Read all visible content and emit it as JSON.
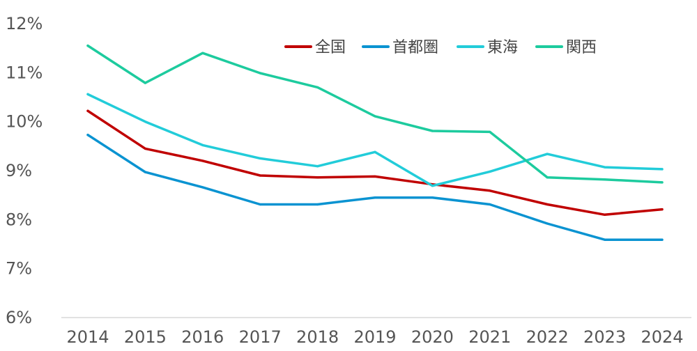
{
  "chart_data": {
    "type": "line",
    "title": "",
    "xlabel": "",
    "ylabel": "",
    "categories": [
      "2014",
      "2015",
      "2016",
      "2017",
      "2018",
      "2019",
      "2020",
      "2021",
      "2022",
      "2023",
      "2024"
    ],
    "ylim": [
      6,
      12
    ],
    "yticks": [
      6,
      7,
      8,
      9,
      10,
      11,
      12
    ],
    "ytick_labels": [
      "6%",
      "7%",
      "8%",
      "9%",
      "10%",
      "11%",
      "12%"
    ],
    "grid": false,
    "legend_position": "top-right",
    "series": [
      {
        "name": "全国",
        "color": "#C00000",
        "values": [
          10.22,
          9.45,
          9.2,
          8.9,
          8.86,
          8.88,
          8.72,
          8.59,
          8.31,
          8.1,
          8.21
        ]
      },
      {
        "name": "首都圏",
        "color": "#0A93D1",
        "values": [
          9.73,
          8.97,
          8.66,
          8.31,
          8.31,
          8.45,
          8.45,
          8.31,
          7.92,
          7.59,
          7.59
        ]
      },
      {
        "name": "東海",
        "color": "#22CCD9",
        "values": [
          10.56,
          10.0,
          9.52,
          9.25,
          9.09,
          9.38,
          8.69,
          8.98,
          9.34,
          9.07,
          9.03
        ]
      },
      {
        "name": "関西",
        "color": "#1DCB9E",
        "values": [
          11.55,
          10.79,
          11.4,
          10.99,
          10.7,
          10.11,
          9.81,
          9.79,
          8.86,
          8.82,
          8.76
        ]
      }
    ]
  }
}
